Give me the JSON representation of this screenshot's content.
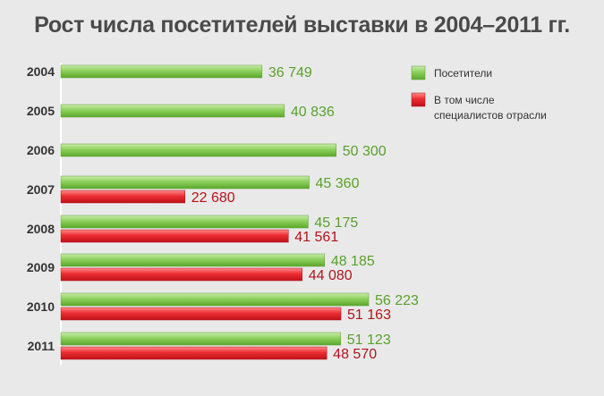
{
  "title": "Рост числа посетителей выставки в 2004–2011 гг.",
  "chart_data": {
    "type": "bar",
    "orientation": "horizontal",
    "title": "Рост числа посетителей выставки в 2004–2011 гг.",
    "categories": [
      "2004",
      "2005",
      "2006",
      "2007",
      "2008",
      "2009",
      "2010",
      "2011"
    ],
    "series": [
      {
        "name": "Посетители",
        "color": "#74c043",
        "values": [
          36749,
          40836,
          50300,
          45360,
          45175,
          48185,
          56223,
          51123
        ],
        "labels": [
          "36 749",
          "40 836",
          "50 300",
          "45 360",
          "45 175",
          "48 185",
          "56 223",
          "51 123"
        ]
      },
      {
        "name": "В том числе специалистов отрасли",
        "color": "#e3252c",
        "values": [
          null,
          null,
          null,
          22680,
          41561,
          44080,
          51163,
          48570
        ],
        "labels": [
          "",
          "",
          "",
          "22 680",
          "41 561",
          "44 080",
          "51 163",
          "48 570"
        ]
      }
    ],
    "legend": {
      "position": "top-right",
      "items": [
        {
          "label_lines": [
            "Посетители"
          ],
          "color": "#74c043"
        },
        {
          "label_lines": [
            "В том числе",
            "специалистов отрасли"
          ],
          "color": "#e3252c"
        }
      ]
    },
    "xlim": [
      0,
      56223
    ],
    "grid": false
  }
}
